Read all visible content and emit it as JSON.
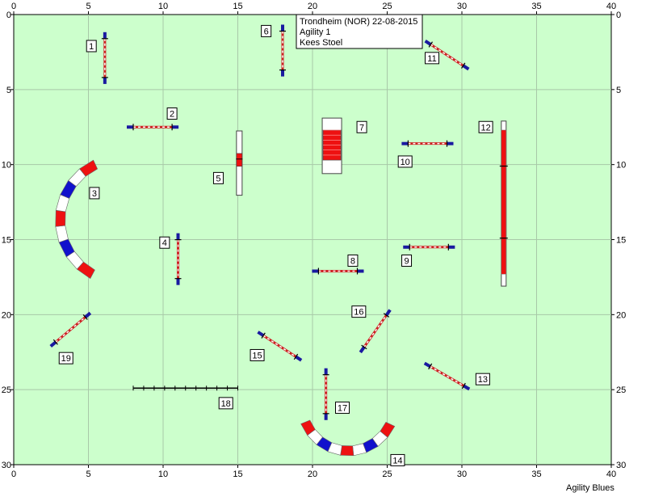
{
  "course": {
    "info_lines": [
      "Trondheim (NOR) 22-08-2015",
      "Agility 1",
      "Kees Stoel"
    ],
    "brand": "Agility Blues",
    "x_range": [
      0,
      40
    ],
    "y_range": [
      0,
      30
    ],
    "x_ticks": [
      0,
      5,
      10,
      15,
      20,
      25,
      30,
      35,
      40
    ],
    "y_ticks": [
      0,
      5,
      10,
      15,
      20,
      25,
      30
    ],
    "grid": true,
    "colors": {
      "field": "#ccffcc",
      "grid": "#a8c8a8",
      "tunnel_red": "#ee1111",
      "tunnel_blue": "#1111cc",
      "jump_bar": "#cc2222",
      "wing": "#1a1aa0"
    },
    "obstacles": [
      {
        "num": "1",
        "type": "jump",
        "x": 6.1,
        "y": 2.9,
        "angle": 90
      },
      {
        "num": "2",
        "type": "jump",
        "x": 9.3,
        "y": 7.5,
        "angle": 0
      },
      {
        "num": "3",
        "type": "tunnel",
        "from": 15.5,
        "to": 15.3
      },
      {
        "num": "4",
        "type": "jump",
        "x": 11.0,
        "y": 16.3,
        "angle": 90
      },
      {
        "num": "5",
        "type": "dogwalk",
        "x": 15.1,
        "y": 9.9,
        "angle": 90
      },
      {
        "num": "6",
        "type": "jump",
        "x": 18.0,
        "y": 2.4,
        "angle": 90
      },
      {
        "num": "7",
        "type": "aframe",
        "x": 21.3,
        "y": 8.8,
        "angle": 90
      },
      {
        "num": "8",
        "type": "jump",
        "x": 21.7,
        "y": 17.1,
        "angle": 0
      },
      {
        "num": "9",
        "type": "jump",
        "x": 27.8,
        "y": 15.5,
        "angle": 0
      },
      {
        "num": "10",
        "type": "jump",
        "x": 27.7,
        "y": 8.6,
        "angle": 0
      },
      {
        "num": "11",
        "type": "jump",
        "x": 29.0,
        "y": 2.7,
        "angle": 33
      },
      {
        "num": "12",
        "type": "dogwalk_long",
        "x": 32.8,
        "y": 12.6,
        "angle": 90
      },
      {
        "num": "13",
        "type": "jump",
        "x": 29.0,
        "y": 24.1,
        "angle": 30
      },
      {
        "num": "14",
        "type": "tunnel",
        "from": 28.5,
        "to": 28.3
      },
      {
        "num": "15",
        "type": "jump",
        "x": 17.8,
        "y": 22.1,
        "angle": 33
      },
      {
        "num": "16",
        "type": "jump",
        "x": 24.2,
        "y": 21.1,
        "angle": -55
      },
      {
        "num": "17",
        "type": "jump",
        "x": 20.9,
        "y": 25.3,
        "angle": 90
      },
      {
        "num": "18",
        "type": "long_jump",
        "x": 11.4,
        "y": 24.9,
        "angle": 0
      },
      {
        "num": "19",
        "type": "jump",
        "x": 3.8,
        "y": 21.0,
        "angle": -40
      }
    ]
  }
}
